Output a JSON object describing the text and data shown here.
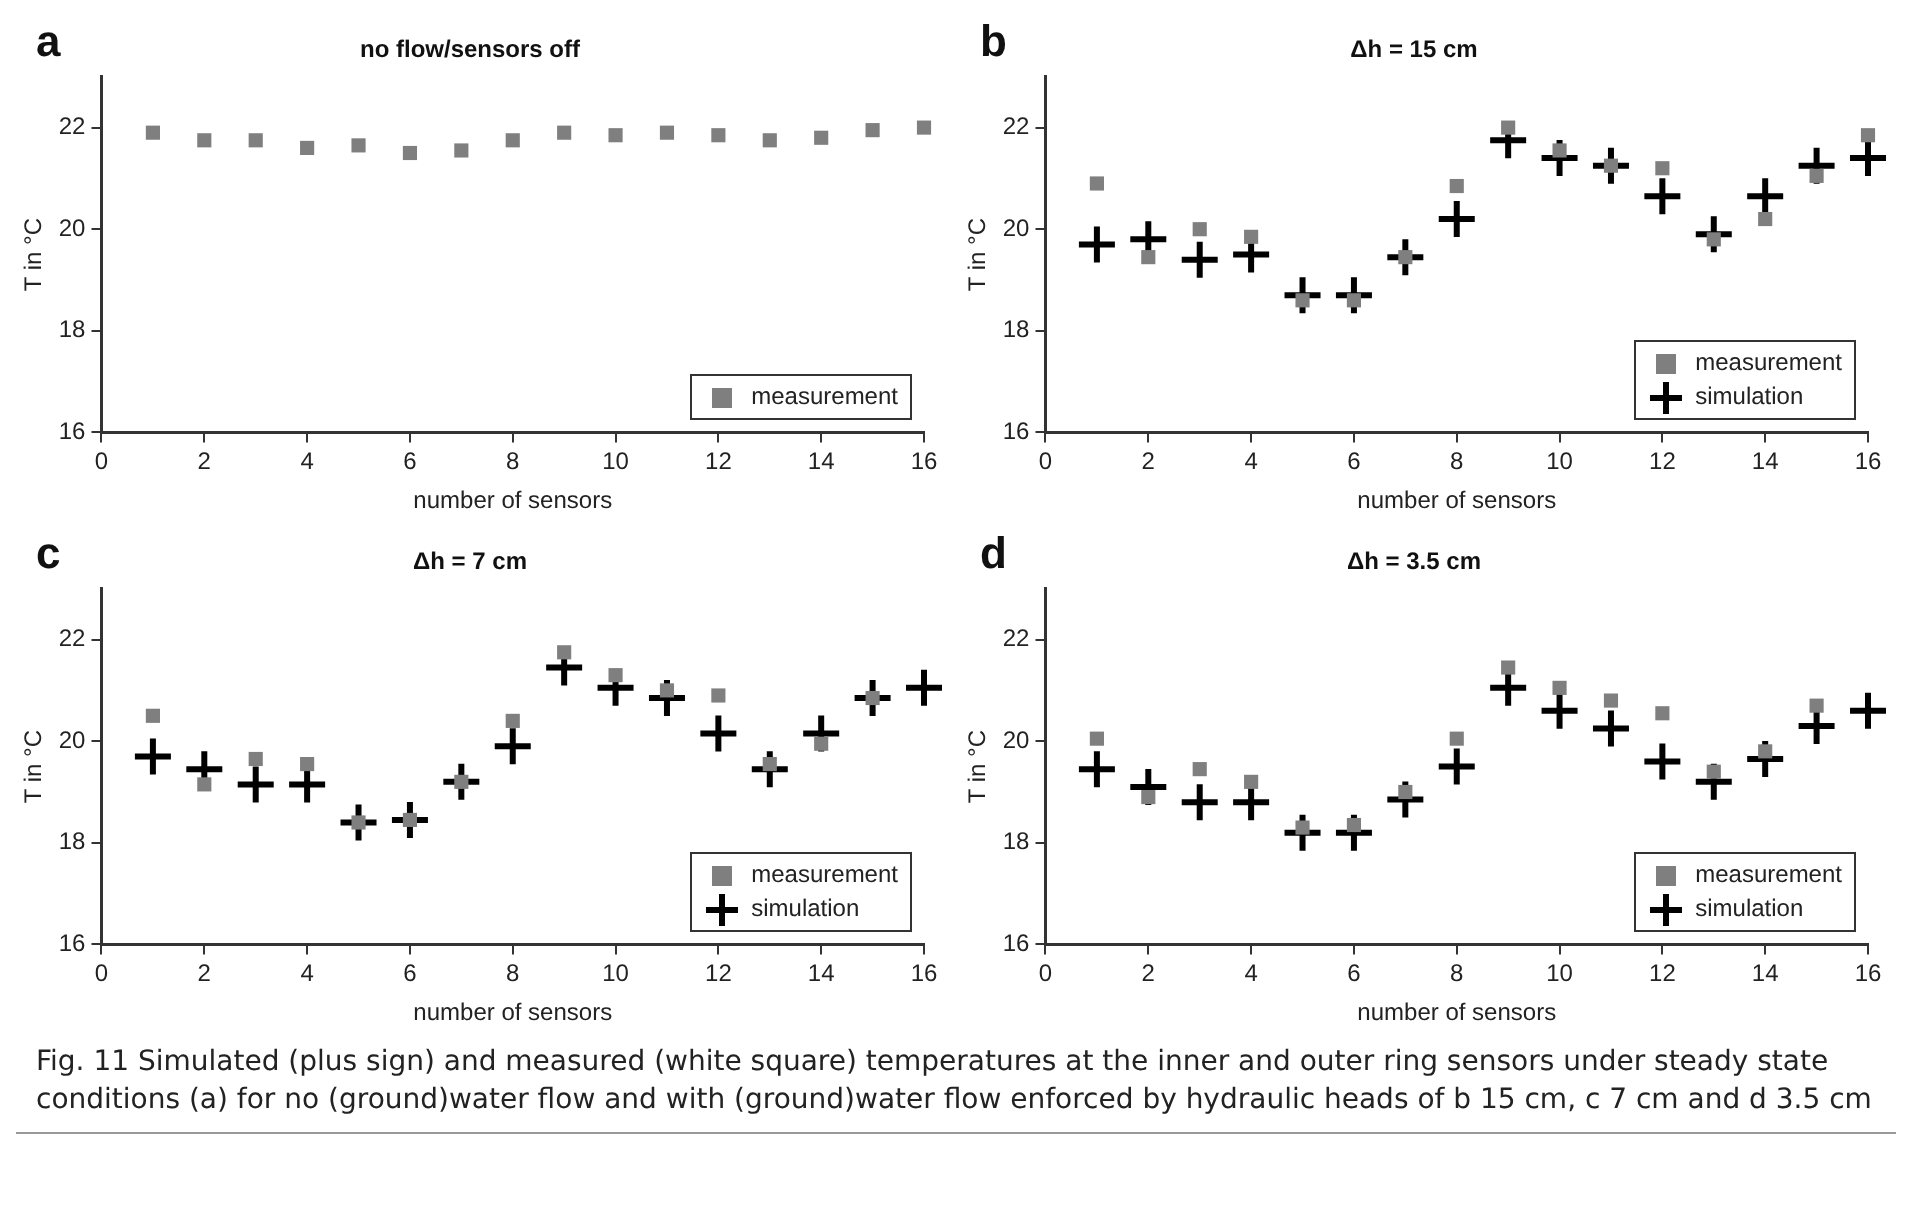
{
  "chart_data": [
    {
      "type": "scatter",
      "title": "no flow/sensors off",
      "xlabel": "number of sensors",
      "ylabel": "T in °C",
      "annotations": [
        "a"
      ],
      "xlim": [
        0,
        16
      ],
      "xticks": [
        0,
        2,
        4,
        6,
        8,
        10,
        12,
        14,
        16
      ],
      "ylim": [
        16,
        23
      ],
      "yticks": [
        16,
        18,
        20,
        22
      ],
      "grid": false,
      "legend": "bottom right",
      "x": [
        1,
        2,
        3,
        4,
        5,
        6,
        7,
        8,
        9,
        10,
        11,
        12,
        13,
        14,
        15,
        16
      ],
      "series": [
        {
          "name": "measurement",
          "color": "#7f7f7f",
          "marker": "square",
          "values": [
            21.9,
            21.75,
            21.75,
            21.6,
            21.65,
            21.5,
            21.55,
            21.75,
            21.9,
            21.85,
            21.9,
            21.85,
            21.75,
            21.8,
            21.95,
            22.0
          ]
        }
      ]
    },
    {
      "type": "scatter",
      "title": "Δh = 15 cm",
      "xlabel": "number of sensors",
      "ylabel": "T in °C",
      "annotations": [
        "b"
      ],
      "xlim": [
        0,
        16
      ],
      "xticks": [
        0,
        2,
        4,
        6,
        8,
        10,
        12,
        14,
        16
      ],
      "ylim": [
        16,
        23
      ],
      "yticks": [
        16,
        18,
        20,
        22
      ],
      "grid": false,
      "legend": "bottom right",
      "x": [
        1,
        2,
        3,
        4,
        5,
        6,
        7,
        8,
        9,
        10,
        11,
        12,
        13,
        14,
        15,
        16
      ],
      "series": [
        {
          "name": "measurement",
          "color": "#7f7f7f",
          "marker": "square",
          "values": [
            20.9,
            19.45,
            20.0,
            19.85,
            18.6,
            18.6,
            19.45,
            20.85,
            22.0,
            21.55,
            21.25,
            21.2,
            19.8,
            20.2,
            21.05,
            21.85
          ]
        },
        {
          "name": "simulation",
          "color": "#000000",
          "marker": "cross",
          "values": [
            19.7,
            19.8,
            19.4,
            19.5,
            18.7,
            18.7,
            19.45,
            20.2,
            21.75,
            21.4,
            21.25,
            20.65,
            19.9,
            20.65,
            21.25,
            21.4
          ]
        }
      ]
    },
    {
      "type": "scatter",
      "title": "Δh = 7 cm",
      "xlabel": "number of sensors",
      "ylabel": "T in °C",
      "annotations": [
        "c"
      ],
      "xlim": [
        0,
        16
      ],
      "xticks": [
        0,
        2,
        4,
        6,
        8,
        10,
        12,
        14,
        16
      ],
      "ylim": [
        16,
        23
      ],
      "yticks": [
        16,
        18,
        20,
        22
      ],
      "grid": false,
      "legend": "bottom right",
      "x": [
        1,
        2,
        3,
        4,
        5,
        6,
        7,
        8,
        9,
        10,
        11,
        12,
        13,
        14,
        15,
        16
      ],
      "series": [
        {
          "name": "measurement",
          "color": "#7f7f7f",
          "marker": "square",
          "values": [
            20.5,
            19.15,
            19.65,
            19.55,
            18.4,
            18.45,
            19.2,
            20.4,
            21.75,
            21.3,
            21.0,
            20.9,
            19.55,
            19.95,
            20.85,
            null
          ]
        },
        {
          "name": "simulation",
          "color": "#000000",
          "marker": "cross",
          "values": [
            19.7,
            19.45,
            19.15,
            19.15,
            18.4,
            18.45,
            19.2,
            19.9,
            21.45,
            21.05,
            20.85,
            20.15,
            19.45,
            20.15,
            20.85,
            21.05
          ]
        }
      ]
    },
    {
      "type": "scatter",
      "title": "Δh = 3.5 cm",
      "xlabel": "number of sensors",
      "ylabel": "T in °C",
      "annotations": [
        "d",
        "Fig. 11  Simulated (plus sign) and measured (white square) temperatures at the inner and outer ring sensors under steady state conditions (a) for no (ground)water flow and with (ground)water flow enforced by hydraulic heads of b 15 cm, c 7 cm and d 3.5 cm"
      ],
      "xlim": [
        0,
        16
      ],
      "xticks": [
        0,
        2,
        4,
        6,
        8,
        10,
        12,
        14,
        16
      ],
      "ylim": [
        16,
        23
      ],
      "yticks": [
        16,
        18,
        20,
        22
      ],
      "grid": false,
      "legend": "bottom right",
      "x": [
        1,
        2,
        3,
        4,
        5,
        6,
        7,
        8,
        9,
        10,
        11,
        12,
        13,
        14,
        15,
        16
      ],
      "series": [
        {
          "name": "measurement",
          "color": "#7f7f7f",
          "marker": "square",
          "values": [
            20.05,
            18.9,
            19.45,
            19.2,
            18.3,
            18.35,
            19.0,
            20.05,
            21.45,
            21.05,
            20.8,
            20.55,
            19.4,
            19.8,
            20.7,
            null
          ]
        },
        {
          "name": "simulation",
          "color": "#000000",
          "marker": "cross",
          "values": [
            19.45,
            19.1,
            18.8,
            18.8,
            18.2,
            18.2,
            18.85,
            19.5,
            21.05,
            20.6,
            20.25,
            19.6,
            19.2,
            19.65,
            20.3,
            20.6
          ]
        }
      ]
    }
  ]
}
